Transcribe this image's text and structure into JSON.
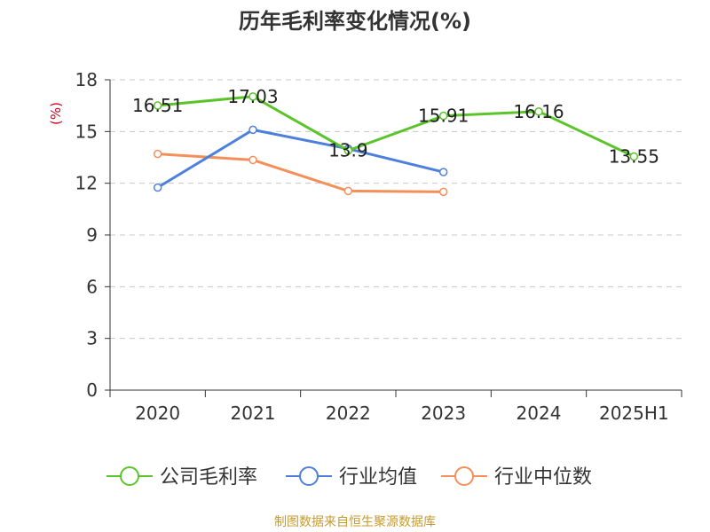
{
  "chart_data": {
    "type": "line",
    "title": "历年毛利率变化情况(%)",
    "ylabel": "(%)",
    "categories": [
      "2020",
      "2021",
      "2022",
      "2023",
      "2024",
      "2025H1"
    ],
    "ylim": [
      0,
      18
    ],
    "yticks": [
      0,
      3,
      6,
      9,
      12,
      15,
      18
    ],
    "grid": true,
    "legend_position": "bottom",
    "series": [
      {
        "name": "公司毛利率",
        "color": "#5cc42b",
        "values": [
          16.51,
          17.03,
          13.9,
          15.91,
          16.16,
          13.55
        ],
        "labels": [
          "16.51",
          "17.03",
          "13.9",
          "15.91",
          "16.16",
          "13.55"
        ]
      },
      {
        "name": "行业均值",
        "color": "#4d7fdc",
        "values": [
          11.75,
          15.1,
          14.0,
          12.65,
          null,
          null
        ]
      },
      {
        "name": "行业中位数",
        "color": "#f58f5a",
        "values": [
          13.7,
          13.35,
          11.55,
          11.5,
          null,
          null
        ]
      }
    ]
  },
  "source": "制图数据来自恒生聚源数据库"
}
